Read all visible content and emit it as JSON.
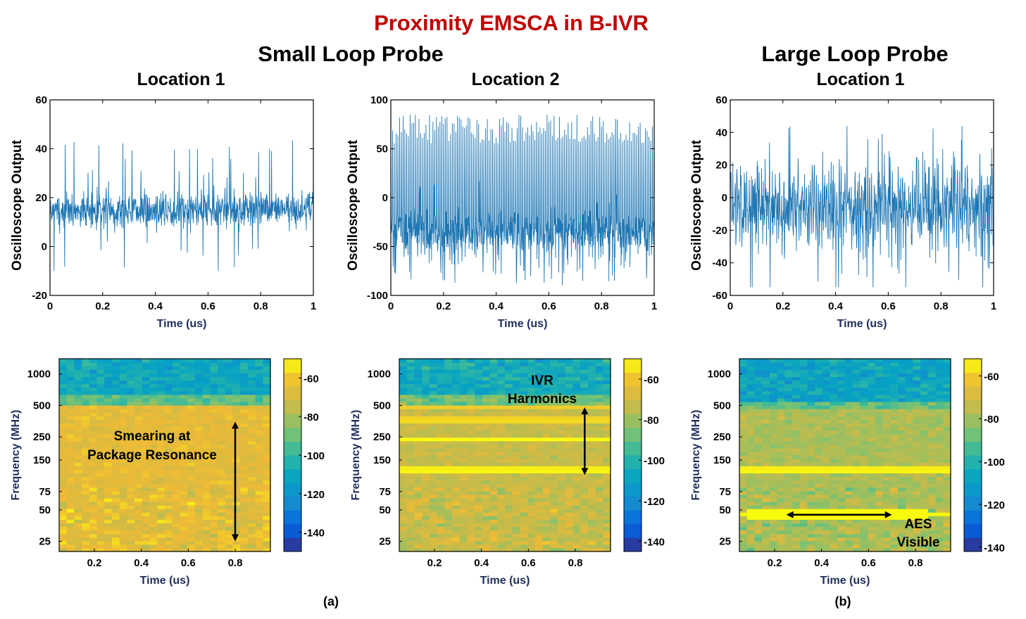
{
  "figure": {
    "main_title": "Proximity EMSCA in B-IVR",
    "group_a_title": "Small Loop Probe",
    "group_b_title": "Large Loop Probe",
    "label_a": "(a)",
    "label_b": "(b)",
    "title_color": "#c00000",
    "trace_color": "#1f77b4"
  },
  "chart_data": [
    {
      "id": "ts1",
      "type": "line",
      "title": "Location 1",
      "xlabel": "Time (us)",
      "ylabel": "Oscilloscope Output",
      "xlim": [
        0,
        1
      ],
      "ylim": [
        -20,
        60
      ],
      "xticks": [
        0,
        0.2,
        0.4,
        0.6,
        0.8,
        1
      ],
      "xtick_labels": [
        "0",
        "0.2",
        "0.4",
        "0.6",
        "0.8",
        "1"
      ],
      "yticks": [
        -20,
        0,
        20,
        40,
        60
      ],
      "ytick_labels": [
        "-20",
        "0",
        "20",
        "40",
        "60"
      ],
      "series": [
        {
          "name": "Oscilloscope Output",
          "description": "noisy trace centred ~15 with spikes from -10 to 44",
          "mean": 15,
          "spread": 7,
          "min": -10,
          "max": 44
        }
      ]
    },
    {
      "id": "ts2",
      "type": "line",
      "title": "Location 2",
      "xlabel": "Time (us)",
      "ylabel": "Oscilloscope Output",
      "xlim": [
        0,
        1
      ],
      "ylim": [
        -100,
        100
      ],
      "xticks": [
        0,
        0.2,
        0.4,
        0.6,
        0.8,
        1
      ],
      "xtick_labels": [
        "0",
        "0.2",
        "0.4",
        "0.6",
        "0.8",
        "1"
      ],
      "yticks": [
        -100,
        -50,
        0,
        50,
        100
      ],
      "ytick_labels": [
        "-100",
        "-50",
        "0",
        "50",
        "100"
      ],
      "series": [
        {
          "name": "Oscilloscope Output",
          "description": "dense band near -35 with periodic spikes reaching ~80",
          "mean": -35,
          "spread": 14,
          "min": -90,
          "max": 90
        }
      ]
    },
    {
      "id": "ts3",
      "type": "line",
      "title": "Location 1",
      "xlabel": "Time (us)",
      "ylabel": "Oscilloscope Output",
      "xlim": [
        0,
        1
      ],
      "ylim": [
        -60,
        60
      ],
      "xticks": [
        0,
        0.2,
        0.4,
        0.6,
        0.8,
        1
      ],
      "xtick_labels": [
        "0",
        "0.2",
        "0.4",
        "0.6",
        "0.8",
        "1"
      ],
      "yticks": [
        -60,
        -40,
        -20,
        0,
        20,
        40,
        60
      ],
      "ytick_labels": [
        "-60",
        "-40",
        "-20",
        "0",
        "20",
        "40",
        "60"
      ],
      "series": [
        {
          "name": "Oscilloscope Output",
          "description": "oscillating trace around -5 with swings between -55 and 44",
          "mean": -5,
          "spread": 14,
          "min": -55,
          "max": 44
        }
      ]
    },
    {
      "id": "sp1",
      "type": "heatmap",
      "xlabel": "Time (us)",
      "ylabel": "Frequency (MHz)",
      "xticks": [
        0.2,
        0.4,
        0.6,
        0.8
      ],
      "xtick_labels": [
        "0.2",
        "0.4",
        "0.6",
        "0.8"
      ],
      "yticks": [
        25,
        50,
        75,
        150,
        250,
        500,
        1000
      ],
      "ytick_labels": [
        "25",
        "50",
        "75",
        "150",
        "250",
        "500",
        "1000"
      ],
      "xlim": [
        0.05,
        0.95
      ],
      "ylim": [
        20,
        1400
      ],
      "colorbar": {
        "min": -150,
        "max": -50,
        "ticks": [
          -60,
          -80,
          -100,
          -120,
          -140
        ],
        "tick_labels": [
          "-60",
          "-80",
          "-100",
          "-120",
          "-140"
        ]
      },
      "bands": [],
      "high_freq_level": -110,
      "transition_mhz": 500,
      "low_freq_level": -65,
      "annotation": {
        "lines": [
          "Smearing at",
          "Package Resonance"
        ],
        "arrow": "vertical double arrow from 25 MHz to 350 MHz at t=0.8"
      }
    },
    {
      "id": "sp2",
      "type": "heatmap",
      "xlabel": "Time (us)",
      "ylabel": "Frequency (MHz)",
      "xticks": [
        0.2,
        0.4,
        0.6,
        0.8
      ],
      "xtick_labels": [
        "0.2",
        "0.4",
        "0.6",
        "0.8"
      ],
      "yticks": [
        25,
        50,
        75,
        150,
        250,
        500,
        1000
      ],
      "ytick_labels": [
        "25",
        "50",
        "75",
        "150",
        "250",
        "500",
        "1000"
      ],
      "xlim": [
        0.05,
        0.95
      ],
      "ylim": [
        20,
        1400
      ],
      "colorbar": {
        "min": -145,
        "max": -50,
        "ticks": [
          -60,
          -80,
          -100,
          -120,
          -140
        ],
        "tick_labels": [
          "-60",
          "-80",
          "-100",
          "-120",
          "-140"
        ]
      },
      "bands": [
        {
          "mhz": 120,
          "level": -50
        },
        {
          "mhz": 240,
          "level": -50
        },
        {
          "mhz": 360,
          "level": -55
        },
        {
          "mhz": 480,
          "level": -58
        }
      ],
      "high_freq_level": -105,
      "transition_mhz": 520,
      "low_freq_level": -72,
      "annotation": {
        "lines": [
          "IVR",
          "Harmonics"
        ],
        "arrow": "vertical double arrow from 110 MHz to 480 MHz at t=0.84"
      }
    },
    {
      "id": "sp3",
      "type": "heatmap",
      "xlabel": "Time (us)",
      "ylabel": "Frequency (MHz)",
      "xticks": [
        0.2,
        0.4,
        0.6,
        0.8
      ],
      "xtick_labels": [
        "0.2",
        "0.4",
        "0.6",
        "0.8"
      ],
      "yticks": [
        25,
        50,
        75,
        150,
        250,
        500,
        1000
      ],
      "ytick_labels": [
        "25",
        "50",
        "75",
        "150",
        "250",
        "500",
        "1000"
      ],
      "xlim": [
        0.05,
        0.95
      ],
      "ylim": [
        20,
        1400
      ],
      "colorbar": {
        "min": -142,
        "max": -52,
        "ticks": [
          -60,
          -80,
          -100,
          -120,
          -140
        ],
        "tick_labels": [
          "-60",
          "-80",
          "-100",
          "-120",
          "-140"
        ]
      },
      "bands": [
        {
          "mhz": 120,
          "level": -52
        },
        {
          "mhz": 45,
          "level": -52
        }
      ],
      "high_freq_level": -108,
      "transition_mhz": 450,
      "low_freq_level": -78,
      "annotation": {
        "lines": [
          "AES",
          "Visible"
        ],
        "arrow": "horizontal double arrow from t=0.25 to t=0.70 at 45 MHz"
      }
    }
  ]
}
